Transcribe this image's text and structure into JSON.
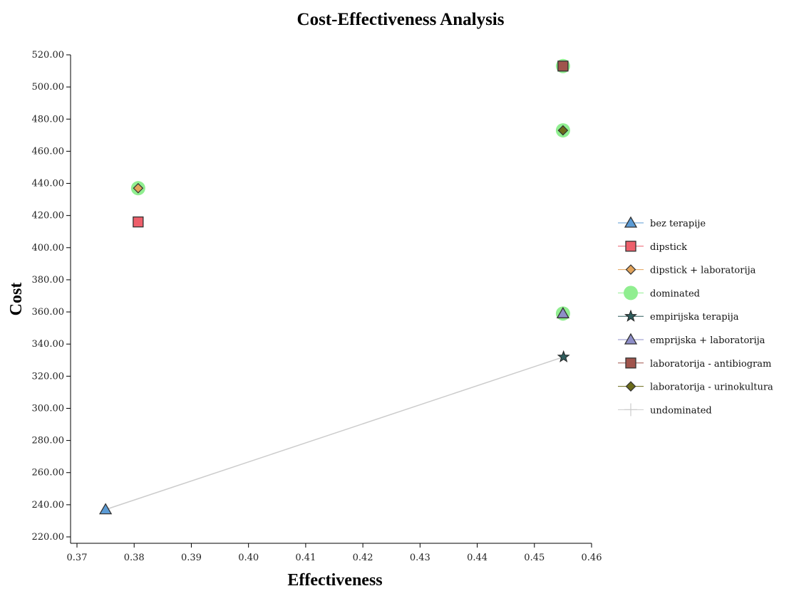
{
  "chart_data": {
    "type": "scatter",
    "title": "Cost-Effectiveness Analysis",
    "xlabel": "Effectiveness",
    "ylabel": "Cost",
    "xlim": [
      0.37,
      0.46
    ],
    "ylim": [
      220,
      520
    ],
    "x_ticks": [
      "0.37",
      "0.38",
      "0.39",
      "0.40",
      "0.41",
      "0.42",
      "0.43",
      "0.44",
      "0.45",
      "0.46"
    ],
    "y_ticks": [
      "220.00",
      "240.00",
      "260.00",
      "280.00",
      "300.00",
      "320.00",
      "340.00",
      "360.00",
      "380.00",
      "400.00",
      "420.00",
      "440.00",
      "460.00",
      "480.00",
      "500.00",
      "520.00"
    ],
    "grid": false,
    "legend_position": "right",
    "series": [
      {
        "name": "bez terapije",
        "marker": "triangle",
        "color": "#5b9bd5",
        "points": [
          [
            0.375,
            237
          ]
        ]
      },
      {
        "name": "dipstick",
        "marker": "square",
        "color": "#ee5f6b",
        "points": [
          [
            0.3807,
            416
          ]
        ]
      },
      {
        "name": "dipstick + laboratorija",
        "marker": "diamond",
        "color": "#e2a35a",
        "points": [
          [
            0.3807,
            437
          ]
        ]
      },
      {
        "name": "dominated",
        "marker": "circle",
        "color": "#90ee90",
        "points": [
          [
            0.3807,
            437
          ],
          [
            0.455,
            513
          ],
          [
            0.455,
            473
          ],
          [
            0.455,
            359
          ]
        ]
      },
      {
        "name": "empirijska terapija",
        "marker": "star",
        "color": "#2f5d5d",
        "points": [
          [
            0.4551,
            332
          ]
        ]
      },
      {
        "name": "emprijska + laboratorija",
        "marker": "triangle",
        "color": "#8e8ec8",
        "points": [
          [
            0.455,
            359
          ]
        ]
      },
      {
        "name": "laboratorija - antibiogram",
        "marker": "square",
        "color": "#a0544c",
        "points": [
          [
            0.455,
            513
          ]
        ]
      },
      {
        "name": "laboratorija - urinokultura",
        "marker": "diamond",
        "color": "#6b6b1a",
        "points": [
          [
            0.455,
            473
          ]
        ]
      },
      {
        "name": "undominated",
        "marker": "line",
        "color": "#cccccc",
        "points": [
          [
            0.375,
            237
          ],
          [
            0.4551,
            332
          ]
        ]
      }
    ]
  }
}
